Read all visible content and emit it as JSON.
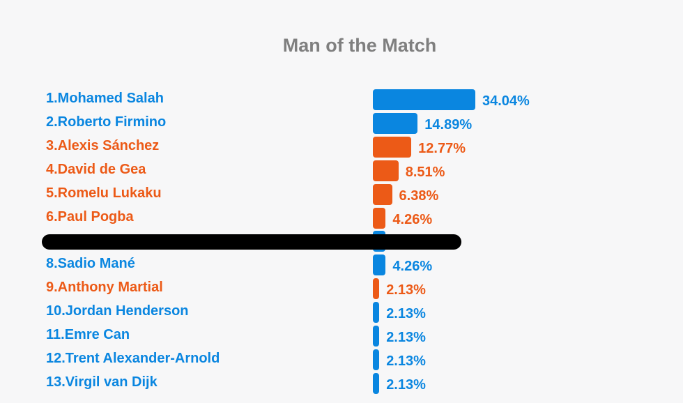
{
  "chart_data": {
    "type": "bar",
    "orientation": "horizontal",
    "title": "Man of the Match",
    "categories": [
      "1.Mohamed Salah",
      "2.Roberto Firmino",
      "3.Alexis Sánchez",
      "4.David de Gea",
      "5.Romelu Lukaku",
      "6.Paul Pogba",
      "",
      "8.Sadio Mané",
      "9.Anthony Martial",
      "10.Jordan Henderson",
      "11.Emre Can",
      "12.Trent Alexander-Arnold",
      "13.Virgil van Dijk"
    ],
    "values": [
      34.04,
      14.89,
      12.77,
      8.51,
      6.38,
      4.26,
      4.26,
      4.26,
      2.13,
      2.13,
      2.13,
      2.13,
      2.13
    ],
    "value_labels": [
      "34.04%",
      "14.89%",
      "12.77%",
      "8.51%",
      "6.38%",
      "4.26%",
      "",
      "4.26%",
      "2.13%",
      "2.13%",
      "2.13%",
      "2.13%",
      "2.13%"
    ],
    "team_colors": [
      "#0a86e0",
      "#0a86e0",
      "#ec5a17",
      "#ec5a17",
      "#ec5a17",
      "#ec5a17",
      "#0a86e0",
      "#0a86e0",
      "#ec5a17",
      "#0a86e0",
      "#0a86e0",
      "#0a86e0",
      "#0a86e0"
    ],
    "redacted_rows": [
      6
    ],
    "xlim": [
      0,
      34.04
    ],
    "grid": false,
    "legend": "none"
  }
}
